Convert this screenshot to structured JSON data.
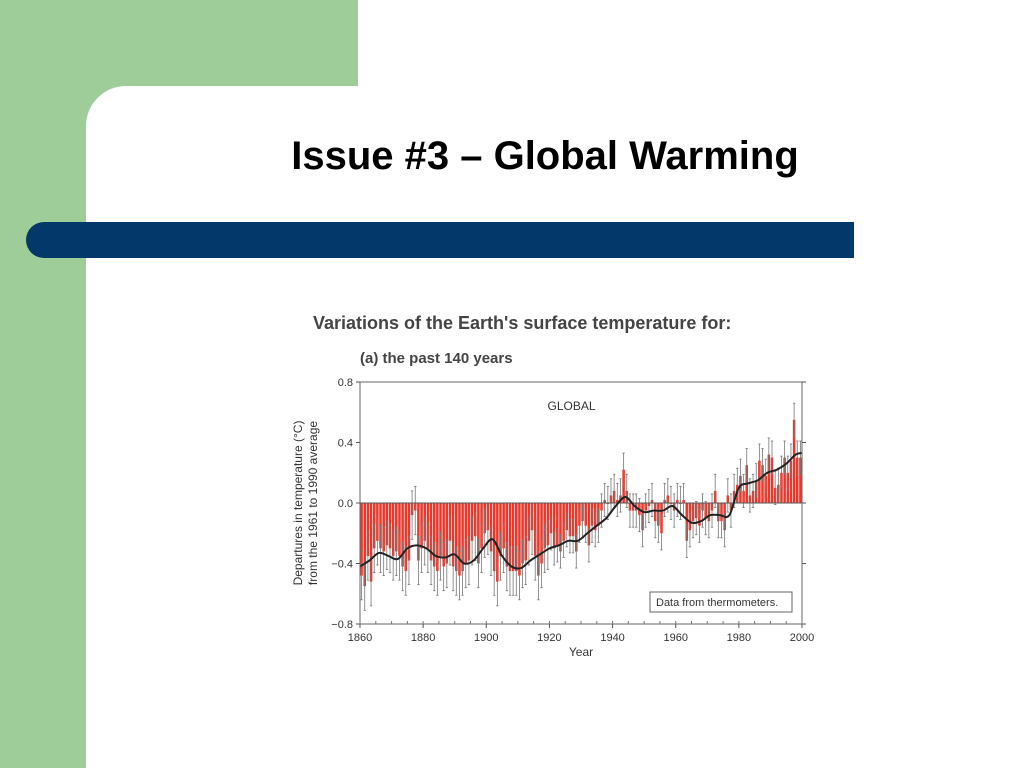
{
  "slide": {
    "title": "Issue #3 – Global Warming",
    "colors": {
      "green": "#9ecd9a",
      "bar": "#02386a"
    }
  },
  "chart_data": {
    "type": "bar",
    "title": "Variations of the Earth's surface temperature for:",
    "subtitle": "(a) the past 140 years",
    "annotation": "GLOBAL",
    "legend_note": "Data from thermometers.",
    "xlabel": "Year",
    "ylabel_line1": "Departures in temperature (°C)",
    "ylabel_line2": "from the 1961 to 1990 average",
    "xlim": [
      1860,
      2000
    ],
    "ylim": [
      -0.8,
      0.8
    ],
    "xticks": [
      "1860",
      "1880",
      "1900",
      "1920",
      "1940",
      "1960",
      "1980",
      "2000"
    ],
    "yticks": [
      "0.8",
      "0.4",
      "0.0",
      "−0.4",
      "−0.8"
    ],
    "bar_color": "#e8382c",
    "x": [
      1861,
      1862,
      1863,
      1864,
      1865,
      1866,
      1867,
      1868,
      1869,
      1870,
      1871,
      1872,
      1873,
      1874,
      1875,
      1876,
      1877,
      1878,
      1879,
      1880,
      1881,
      1882,
      1883,
      1884,
      1885,
      1886,
      1887,
      1888,
      1889,
      1890,
      1891,
      1892,
      1893,
      1894,
      1895,
      1896,
      1897,
      1898,
      1899,
      1900,
      1901,
      1902,
      1903,
      1904,
      1905,
      1906,
      1907,
      1908,
      1909,
      1910,
      1911,
      1912,
      1913,
      1914,
      1915,
      1916,
      1917,
      1918,
      1919,
      1920,
      1921,
      1922,
      1923,
      1924,
      1925,
      1926,
      1927,
      1928,
      1929,
      1930,
      1931,
      1932,
      1933,
      1934,
      1935,
      1936,
      1937,
      1938,
      1939,
      1940,
      1941,
      1942,
      1943,
      1944,
      1945,
      1946,
      1947,
      1948,
      1949,
      1950,
      1951,
      1952,
      1953,
      1954,
      1955,
      1956,
      1957,
      1958,
      1959,
      1960,
      1961,
      1962,
      1963,
      1964,
      1965,
      1966,
      1967,
      1968,
      1969,
      1970,
      1971,
      1972,
      1973,
      1974,
      1975,
      1976,
      1977,
      1978,
      1979,
      1980,
      1981,
      1982,
      1983,
      1984,
      1985,
      1986,
      1987,
      1988,
      1989,
      1990,
      1991,
      1992,
      1993,
      1994,
      1995,
      1996,
      1997,
      1998,
      1999,
      2000
    ],
    "values": [
      -0.48,
      -0.55,
      -0.35,
      -0.52,
      -0.3,
      -0.25,
      -0.3,
      -0.32,
      -0.28,
      -0.3,
      -0.35,
      -0.32,
      -0.35,
      -0.42,
      -0.45,
      -0.38,
      -0.08,
      -0.05,
      -0.38,
      -0.3,
      -0.25,
      -0.3,
      -0.38,
      -0.42,
      -0.45,
      -0.35,
      -0.42,
      -0.4,
      -0.25,
      -0.42,
      -0.45,
      -0.48,
      -0.45,
      -0.4,
      -0.38,
      -0.25,
      -0.22,
      -0.4,
      -0.3,
      -0.2,
      -0.18,
      -0.32,
      -0.45,
      -0.52,
      -0.35,
      -0.3,
      -0.42,
      -0.45,
      -0.45,
      -0.45,
      -0.48,
      -0.4,
      -0.38,
      -0.25,
      -0.18,
      -0.35,
      -0.48,
      -0.4,
      -0.3,
      -0.28,
      -0.2,
      -0.3,
      -0.28,
      -0.32,
      -0.25,
      -0.18,
      -0.22,
      -0.22,
      -0.32,
      -0.15,
      -0.12,
      -0.15,
      -0.28,
      -0.15,
      -0.18,
      -0.15,
      -0.05,
      0.02,
      0.0,
      0.05,
      0.08,
      0.02,
      0.05,
      0.22,
      0.08,
      -0.05,
      -0.05,
      -0.05,
      -0.08,
      -0.18,
      -0.05,
      -0.02,
      0.02,
      -0.12,
      -0.15,
      -0.2,
      0.02,
      0.05,
      0.0,
      -0.05,
      0.02,
      0.0,
      0.02,
      -0.25,
      -0.18,
      -0.12,
      -0.1,
      -0.15,
      -0.05,
      -0.1,
      -0.12,
      -0.05,
      0.08,
      -0.12,
      -0.12,
      -0.18,
      0.05,
      -0.05,
      0.08,
      0.12,
      0.18,
      0.08,
      0.25,
      0.05,
      0.08,
      0.15,
      0.28,
      0.25,
      0.18,
      0.32,
      0.3,
      0.1,
      0.12,
      0.2,
      0.3,
      0.2,
      0.28,
      0.55,
      0.3,
      0.3
    ],
    "smooth_x": [
      1860,
      1863,
      1866,
      1869,
      1872,
      1875,
      1878,
      1881,
      1884,
      1887,
      1890,
      1893,
      1896,
      1899,
      1902,
      1905,
      1908,
      1911,
      1914,
      1917,
      1920,
      1923,
      1926,
      1929,
      1932,
      1935,
      1938,
      1941,
      1944,
      1947,
      1950,
      1953,
      1956,
      1959,
      1962,
      1965,
      1968,
      1971,
      1974,
      1977,
      1980,
      1983,
      1986,
      1989,
      1992,
      1995,
      1998,
      2000
    ],
    "smooth_y": [
      -0.42,
      -0.38,
      -0.33,
      -0.35,
      -0.37,
      -0.3,
      -0.28,
      -0.3,
      -0.35,
      -0.36,
      -0.34,
      -0.4,
      -0.38,
      -0.3,
      -0.24,
      -0.35,
      -0.42,
      -0.43,
      -0.38,
      -0.34,
      -0.3,
      -0.28,
      -0.25,
      -0.25,
      -0.2,
      -0.15,
      -0.1,
      -0.02,
      0.04,
      -0.02,
      -0.06,
      -0.05,
      -0.05,
      -0.02,
      -0.08,
      -0.13,
      -0.12,
      -0.08,
      -0.08,
      -0.08,
      0.1,
      0.13,
      0.15,
      0.2,
      0.22,
      0.26,
      0.32,
      0.33
    ]
  }
}
